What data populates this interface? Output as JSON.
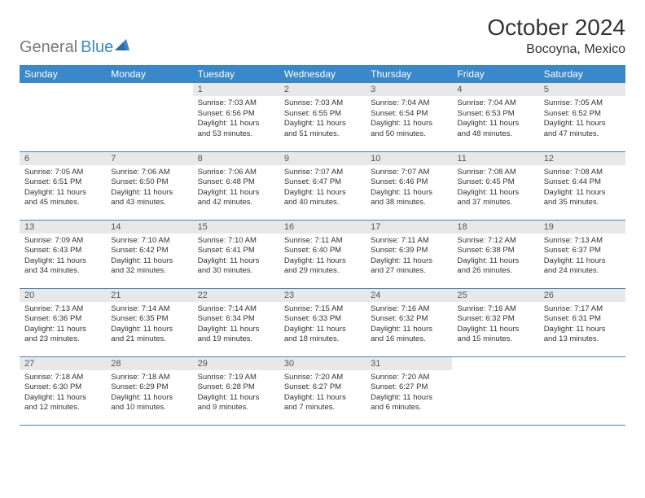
{
  "logo": {
    "text1": "General",
    "text2": "Blue"
  },
  "title": "October 2024",
  "location": "Bocoyna, Mexico",
  "colors": {
    "accent": "#3a87c9",
    "day_bg": "#e8e8e8",
    "text": "#333333",
    "gray_text": "#7a7a7a",
    "bg": "#ffffff"
  },
  "fonts": {
    "title_size": 28,
    "location_size": 16,
    "dayhead_size": 12,
    "cell_size": 9.5
  },
  "day_headers": [
    "Sunday",
    "Monday",
    "Tuesday",
    "Wednesday",
    "Thursday",
    "Friday",
    "Saturday"
  ],
  "weeks": [
    [
      null,
      null,
      {
        "n": "1",
        "sr": "7:03 AM",
        "ss": "6:56 PM",
        "dl": "11 hours and 53 minutes."
      },
      {
        "n": "2",
        "sr": "7:03 AM",
        "ss": "6:55 PM",
        "dl": "11 hours and 51 minutes."
      },
      {
        "n": "3",
        "sr": "7:04 AM",
        "ss": "6:54 PM",
        "dl": "11 hours and 50 minutes."
      },
      {
        "n": "4",
        "sr": "7:04 AM",
        "ss": "6:53 PM",
        "dl": "11 hours and 48 minutes."
      },
      {
        "n": "5",
        "sr": "7:05 AM",
        "ss": "6:52 PM",
        "dl": "11 hours and 47 minutes."
      }
    ],
    [
      {
        "n": "6",
        "sr": "7:05 AM",
        "ss": "6:51 PM",
        "dl": "11 hours and 45 minutes."
      },
      {
        "n": "7",
        "sr": "7:06 AM",
        "ss": "6:50 PM",
        "dl": "11 hours and 43 minutes."
      },
      {
        "n": "8",
        "sr": "7:06 AM",
        "ss": "6:48 PM",
        "dl": "11 hours and 42 minutes."
      },
      {
        "n": "9",
        "sr": "7:07 AM",
        "ss": "6:47 PM",
        "dl": "11 hours and 40 minutes."
      },
      {
        "n": "10",
        "sr": "7:07 AM",
        "ss": "6:46 PM",
        "dl": "11 hours and 38 minutes."
      },
      {
        "n": "11",
        "sr": "7:08 AM",
        "ss": "6:45 PM",
        "dl": "11 hours and 37 minutes."
      },
      {
        "n": "12",
        "sr": "7:08 AM",
        "ss": "6:44 PM",
        "dl": "11 hours and 35 minutes."
      }
    ],
    [
      {
        "n": "13",
        "sr": "7:09 AM",
        "ss": "6:43 PM",
        "dl": "11 hours and 34 minutes."
      },
      {
        "n": "14",
        "sr": "7:10 AM",
        "ss": "6:42 PM",
        "dl": "11 hours and 32 minutes."
      },
      {
        "n": "15",
        "sr": "7:10 AM",
        "ss": "6:41 PM",
        "dl": "11 hours and 30 minutes."
      },
      {
        "n": "16",
        "sr": "7:11 AM",
        "ss": "6:40 PM",
        "dl": "11 hours and 29 minutes."
      },
      {
        "n": "17",
        "sr": "7:11 AM",
        "ss": "6:39 PM",
        "dl": "11 hours and 27 minutes."
      },
      {
        "n": "18",
        "sr": "7:12 AM",
        "ss": "6:38 PM",
        "dl": "11 hours and 26 minutes."
      },
      {
        "n": "19",
        "sr": "7:13 AM",
        "ss": "6:37 PM",
        "dl": "11 hours and 24 minutes."
      }
    ],
    [
      {
        "n": "20",
        "sr": "7:13 AM",
        "ss": "6:36 PM",
        "dl": "11 hours and 23 minutes."
      },
      {
        "n": "21",
        "sr": "7:14 AM",
        "ss": "6:35 PM",
        "dl": "11 hours and 21 minutes."
      },
      {
        "n": "22",
        "sr": "7:14 AM",
        "ss": "6:34 PM",
        "dl": "11 hours and 19 minutes."
      },
      {
        "n": "23",
        "sr": "7:15 AM",
        "ss": "6:33 PM",
        "dl": "11 hours and 18 minutes."
      },
      {
        "n": "24",
        "sr": "7:16 AM",
        "ss": "6:32 PM",
        "dl": "11 hours and 16 minutes."
      },
      {
        "n": "25",
        "sr": "7:16 AM",
        "ss": "6:32 PM",
        "dl": "11 hours and 15 minutes."
      },
      {
        "n": "26",
        "sr": "7:17 AM",
        "ss": "6:31 PM",
        "dl": "11 hours and 13 minutes."
      }
    ],
    [
      {
        "n": "27",
        "sr": "7:18 AM",
        "ss": "6:30 PM",
        "dl": "11 hours and 12 minutes."
      },
      {
        "n": "28",
        "sr": "7:18 AM",
        "ss": "6:29 PM",
        "dl": "11 hours and 10 minutes."
      },
      {
        "n": "29",
        "sr": "7:19 AM",
        "ss": "6:28 PM",
        "dl": "11 hours and 9 minutes."
      },
      {
        "n": "30",
        "sr": "7:20 AM",
        "ss": "6:27 PM",
        "dl": "11 hours and 7 minutes."
      },
      {
        "n": "31",
        "sr": "7:20 AM",
        "ss": "6:27 PM",
        "dl": "11 hours and 6 minutes."
      },
      null,
      null
    ]
  ],
  "labels": {
    "sunrise": "Sunrise:",
    "sunset": "Sunset:",
    "daylight": "Daylight:"
  }
}
